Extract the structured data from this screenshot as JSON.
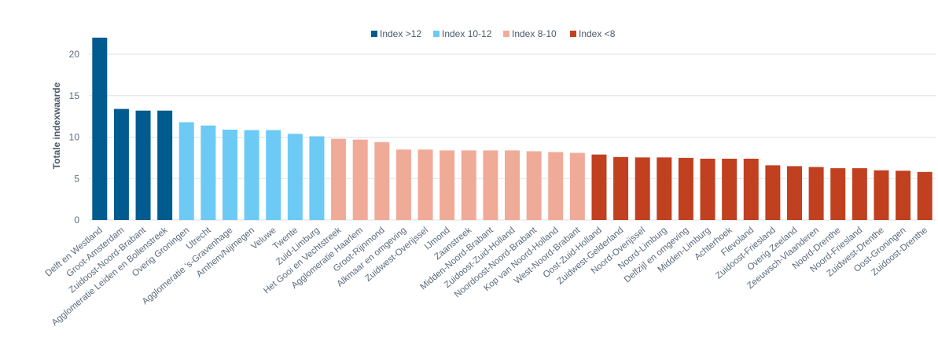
{
  "chart_data": {
    "type": "bar",
    "title": "",
    "xlabel": "",
    "ylabel": "Totale indexwaarde",
    "ylim": [
      0,
      22
    ],
    "yticks": [
      0,
      5,
      10,
      15,
      20
    ],
    "grid": true,
    "legend_position": "top-center",
    "legend": [
      {
        "name": "Index >12",
        "color": "#005b8f"
      },
      {
        "name": "Index 10-12",
        "color": "#6ccaf5"
      },
      {
        "name": "Index 8-10",
        "color": "#f0ab98"
      },
      {
        "name": "Index <8",
        "color": "#c0401f"
      }
    ],
    "categories": [
      "Delft en Westland",
      "Groot-Amsterdam",
      "Zuidoost-Noord-Brabant",
      "Agglomeratie Leiden en Bollenstreek",
      "Overig Groningen",
      "Utrecht",
      "Agglomeratie 's-Gravenhage",
      "Arnhem/Nijmegen",
      "Veluwe",
      "Twente",
      "Zuid-Limburg",
      "Het Gooi en Vechtstreek",
      "Agglomeratie Haarlem",
      "Groot-Rijnmond",
      "Alkmaar en omgeving",
      "Zuidwest-Overijssel",
      "IJmond",
      "Zaanstreek",
      "Midden-Noord-Brabant",
      "Zuidoost-Zuid-Holland",
      "Noordoost-Noord-Brabant",
      "Kop van Noord-Holland",
      "West-Noord-Brabant",
      "Oost-Zuid-Holland",
      "Zuidwest-Gelderland",
      "Noord-Overijssel",
      "Noord-Limburg",
      "Delfzijl en omgeving",
      "Midden-Limburg",
      "Achterhoek",
      "Flevoland",
      "Zuidoost-Friesland",
      "Overig Zeeland",
      "Zeeuwsch-Vlaanderen",
      "Noord-Drenthe",
      "Noord-Friesland",
      "Zuidwest-Drenthe",
      "Oost-Groningen",
      "Zuidoost-Drenthe"
    ],
    "values": [
      22.0,
      13.4,
      13.2,
      13.2,
      11.8,
      11.4,
      10.9,
      10.85,
      10.85,
      10.4,
      10.1,
      9.8,
      9.7,
      9.4,
      8.5,
      8.5,
      8.4,
      8.4,
      8.4,
      8.4,
      8.3,
      8.2,
      8.1,
      7.9,
      7.6,
      7.55,
      7.55,
      7.5,
      7.4,
      7.4,
      7.4,
      6.6,
      6.5,
      6.4,
      6.25,
      6.25,
      6.0,
      5.95,
      5.8
    ],
    "groups": [
      0,
      0,
      0,
      0,
      1,
      1,
      1,
      1,
      1,
      1,
      1,
      2,
      2,
      2,
      2,
      2,
      2,
      2,
      2,
      2,
      2,
      2,
      2,
      3,
      3,
      3,
      3,
      3,
      3,
      3,
      3,
      3,
      3,
      3,
      3,
      3,
      3,
      3,
      3
    ]
  }
}
